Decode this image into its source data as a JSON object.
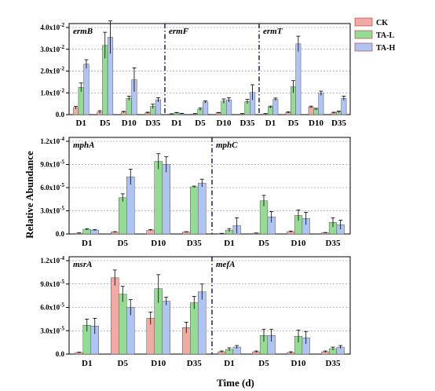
{
  "colors": {
    "CK": "#f2aaa5",
    "TA-L": "#94dc94",
    "TA-H": "#b0c4f4",
    "divider": "#1a1a8c"
  },
  "legend": [
    "CK",
    "TA-L",
    "TA-H"
  ],
  "axis": {
    "ylabel": "Relative Abundance",
    "xlabel": "Time (d)"
  },
  "chart_data": [
    {
      "type": "bar",
      "panel": "top",
      "categories": [
        "D1",
        "D5",
        "D10",
        "D35"
      ],
      "ylim": [
        0,
        0.04
      ],
      "yticks": [
        0,
        0.01,
        0.02,
        0.03,
        0.04
      ],
      "ytick_labels": [
        "0.0",
        "1.0x10^-2",
        "2.0x10^-2",
        "3.0x10^-2",
        "4.0x10^-2"
      ],
      "groups": [
        {
          "gene": "ermB",
          "series": [
            {
              "name": "CK",
              "values": [
                0.0032,
                0.0012,
                0.0012,
                0.0008
              ],
              "errors": [
                0.0006,
                0.0006,
                0.0003,
                0.0003
              ]
            },
            {
              "name": "TA-L",
              "values": [
                0.0125,
                0.0318,
                0.0075,
                0.0038
              ],
              "errors": [
                0.002,
                0.006,
                0.001,
                0.001
              ]
            },
            {
              "name": "TA-H",
              "values": [
                0.0232,
                0.0355,
                0.016,
                0.0068
              ],
              "errors": [
                0.002,
                0.0075,
                0.0055,
                0.001
              ]
            }
          ]
        },
        {
          "gene": "ermF",
          "series": [
            {
              "name": "CK",
              "values": [
                0.0002,
                0.0003,
                0.0008,
                0.0003
              ],
              "errors": [
                0.0002,
                0.0002,
                0.0002,
                0.0002
              ]
            },
            {
              "name": "TA-L",
              "values": [
                0.0008,
                0.0025,
                0.0062,
                0.006
              ],
              "errors": [
                0.0002,
                0.0005,
                0.001,
                0.001
              ]
            },
            {
              "name": "TA-H",
              "values": [
                0.0004,
                0.0058,
                0.0068,
                0.0102
              ],
              "errors": [
                0.0002,
                0.0005,
                0.001,
                0.0035
              ]
            }
          ]
        },
        {
          "gene": "ermT",
          "series": [
            {
              "name": "CK",
              "values": [
                0.0003,
                0.001,
                0.0035,
                0.0008
              ],
              "errors": [
                0.0002,
                0.0003,
                0.0004,
                0.0003
              ]
            },
            {
              "name": "TA-L",
              "values": [
                0.0035,
                0.0128,
                0.0025,
                0.0012
              ],
              "errors": [
                0.0004,
                0.0028,
                0.0004,
                0.0004
              ]
            },
            {
              "name": "TA-H",
              "values": [
                0.007,
                0.0325,
                0.0098,
                0.0075
              ],
              "errors": [
                0.0006,
                0.0035,
                0.001,
                0.001
              ]
            }
          ]
        }
      ]
    },
    {
      "type": "bar",
      "panel": "middle",
      "categories": [
        "D1",
        "D5",
        "D10",
        "D35"
      ],
      "ylim": [
        0,
        0.00012
      ],
      "yticks": [
        0,
        3e-05,
        6e-05,
        9e-05,
        0.00012
      ],
      "ytick_labels": [
        "0.0",
        "3.0x10^-5",
        "6.0x10^-5",
        "9.0x10^-5",
        "1.2x10^-4"
      ],
      "groups": [
        {
          "gene": "mphA",
          "series": [
            {
              "name": "CK",
              "values": [
                1e-06,
                2.5e-06,
                5e-06,
                2.5e-06
              ],
              "errors": [
                5e-07,
                5e-07,
                8e-07,
                5e-07
              ]
            },
            {
              "name": "TA-L",
              "values": [
                6e-06,
                4.7e-05,
                9.4e-05,
                6.1e-05
              ],
              "errors": [
                8e-07,
                5e-06,
                1e-05,
                1e-06
              ]
            },
            {
              "name": "TA-H",
              "values": [
                5e-06,
                7.4e-05,
                9e-05,
                6.6e-05
              ],
              "errors": [
                8e-07,
                1e-05,
                1e-05,
                5e-06
              ]
            }
          ]
        },
        {
          "gene": "mphC",
          "series": [
            {
              "name": "CK",
              "values": [
                5e-07,
                1e-06,
                3e-06,
                1.5e-06
              ],
              "errors": [
                3e-07,
                3e-07,
                8e-07,
                4e-07
              ]
            },
            {
              "name": "TA-L",
              "values": [
                5e-06,
                4.3e-05,
                2.4e-05,
                1.5e-05
              ],
              "errors": [
                2e-06,
                7e-06,
                7e-06,
                6e-06
              ]
            },
            {
              "name": "TA-H",
              "values": [
                1.1e-05,
                2.2e-05,
                2e-05,
                1.2e-05
              ],
              "errors": [
                1e-05,
                7e-06,
                8e-06,
                6e-06
              ]
            }
          ]
        }
      ]
    },
    {
      "type": "bar",
      "panel": "bottom",
      "categories": [
        "D1",
        "D5",
        "D10",
        "D35"
      ],
      "ylim": [
        0,
        0.00012
      ],
      "yticks": [
        0,
        3e-05,
        6e-05,
        9e-05,
        0.00012
      ],
      "ytick_labels": [
        "0.0",
        "3.0x10^-5",
        "6.0x10^-5",
        "9.0x10^-5",
        "1.2x10^-4"
      ],
      "groups": [
        {
          "gene": "msrA",
          "series": [
            {
              "name": "CK",
              "values": [
                2e-06,
                9.8e-05,
                4.6e-05,
                3.4e-05
              ],
              "errors": [
                5e-07,
                1e-05,
                8e-06,
                7e-06
              ]
            },
            {
              "name": "TA-L",
              "values": [
                3.7e-05,
                7.7e-05,
                8.4e-05,
                6.6e-05
              ],
              "errors": [
                8e-06,
                1e-05,
                1.8e-05,
                8e-06
              ]
            },
            {
              "name": "TA-H",
              "values": [
                3.6e-05,
                6e-05,
                6.8e-05,
                8e-05
              ],
              "errors": [
                1e-05,
                1e-05,
                5e-06,
                1e-05
              ]
            }
          ]
        },
        {
          "gene": "mefA",
          "series": [
            {
              "name": "CK",
              "values": [
                3e-06,
                3e-06,
                2e-06,
                3e-06
              ],
              "errors": [
                1e-06,
                1e-06,
                1e-06,
                1e-06
              ]
            },
            {
              "name": "TA-L",
              "values": [
                6e-06,
                2.4e-05,
                2.3e-05,
                7e-06
              ],
              "errors": [
                2e-06,
                8e-06,
                8e-06,
                2e-06
              ]
            },
            {
              "name": "TA-H",
              "values": [
                9e-06,
                2.4e-05,
                2.1e-05,
                9e-06
              ],
              "errors": [
                2e-06,
                8e-06,
                8e-06,
                2e-06
              ]
            }
          ]
        }
      ]
    }
  ]
}
